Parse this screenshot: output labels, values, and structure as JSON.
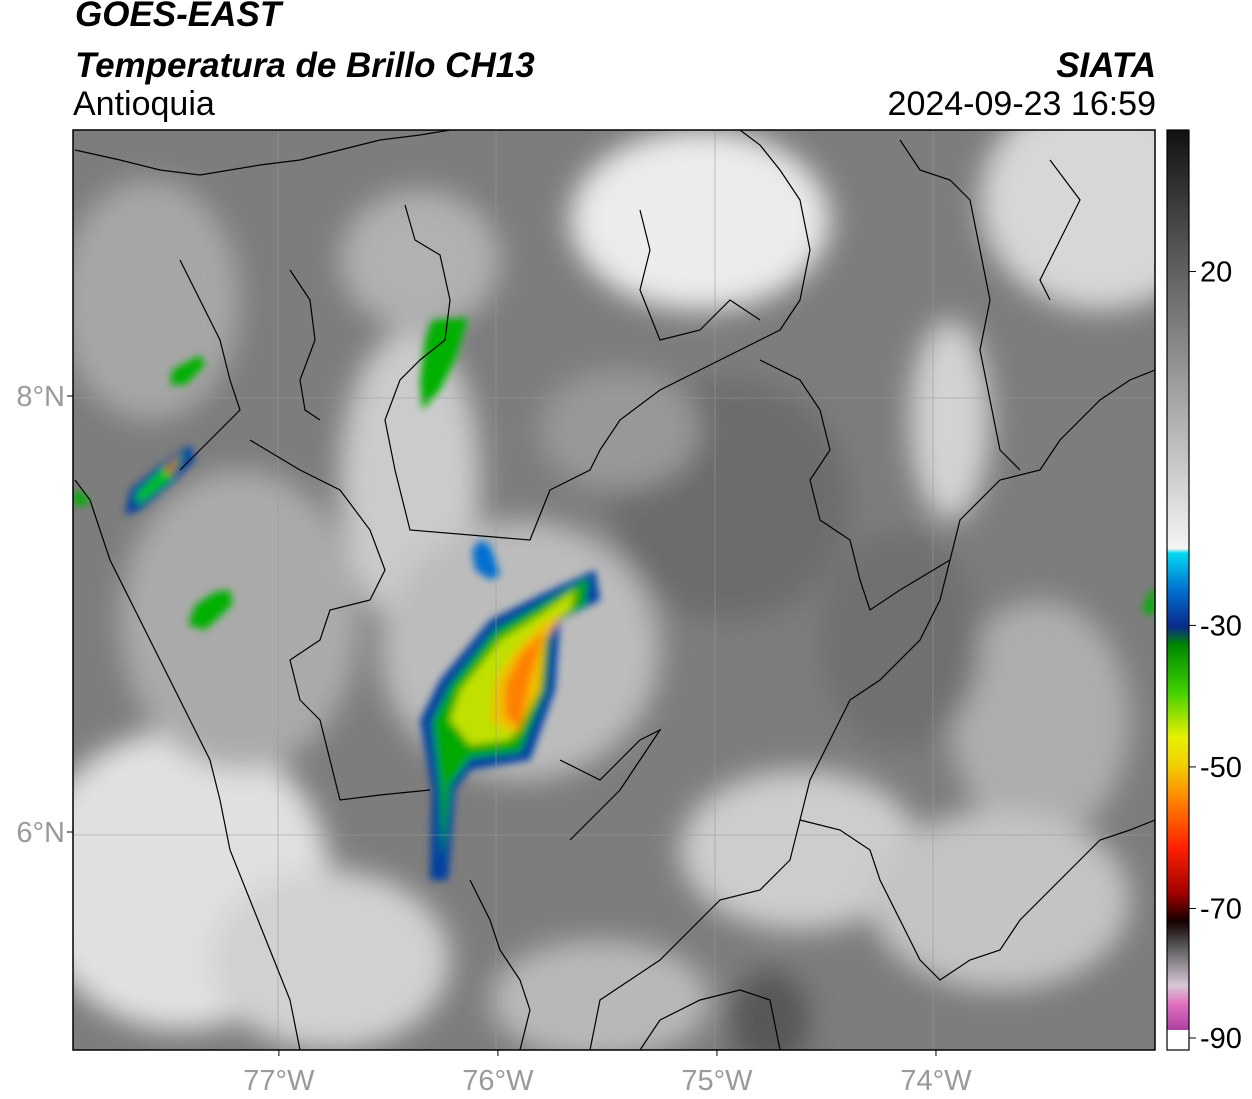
{
  "header": {
    "satellite": "GOES-EAST",
    "product": "Temperatura de Brillo CH13",
    "region": "Antioquia",
    "organization": "SIATA",
    "datetime": "2024-09-23 16:59"
  },
  "map": {
    "lon_range": [
      -77.94,
      -73.0
    ],
    "lat_range": [
      5.0,
      9.22
    ],
    "lat_ticks": [
      {
        "value": 8,
        "label": "8°N"
      },
      {
        "value": 6,
        "label": "6°N"
      }
    ],
    "lon_ticks": [
      {
        "value": -77,
        "label": "77°W"
      },
      {
        "value": -76,
        "label": "76°W"
      },
      {
        "value": -75,
        "label": "75°W"
      },
      {
        "value": -74,
        "label": "74°W"
      }
    ],
    "gridlines": true
  },
  "colorbar": {
    "range": [
      -90,
      40
    ],
    "ticks": [
      {
        "value": 20,
        "label": "20"
      },
      {
        "value": -30,
        "label": "-30"
      },
      {
        "value": -50,
        "label": "-50"
      },
      {
        "value": -70,
        "label": "-70"
      },
      {
        "value": -90,
        "label": "-90"
      }
    ],
    "colors": {
      "warm_gray_top": "#111111",
      "gray_mid": "#888888",
      "white": "#f4f4f4",
      "cyan": "#00d8f0",
      "blue": "#0a2a8a",
      "green": "#00b000",
      "yellow": "#f0f000",
      "orange": "#ff8000",
      "red": "#e00000",
      "dark": "#150000",
      "pink": "#e070c0",
      "purple": "#8a1a8a"
    }
  },
  "storm_cells": [
    {
      "lon": -75.85,
      "lat": 6.75,
      "min_temp": -60
    },
    {
      "lon": -77.45,
      "lat": 7.65,
      "min_temp": -58
    },
    {
      "lon": -76.25,
      "lat": 8.15,
      "min_temp": -42
    },
    {
      "lon": -77.3,
      "lat": 7.05,
      "min_temp": -38
    },
    {
      "lon": -77.45,
      "lat": 8.1,
      "min_temp": -36
    },
    {
      "lon": -76.2,
      "lat": 5.9,
      "min_temp": -36
    }
  ]
}
